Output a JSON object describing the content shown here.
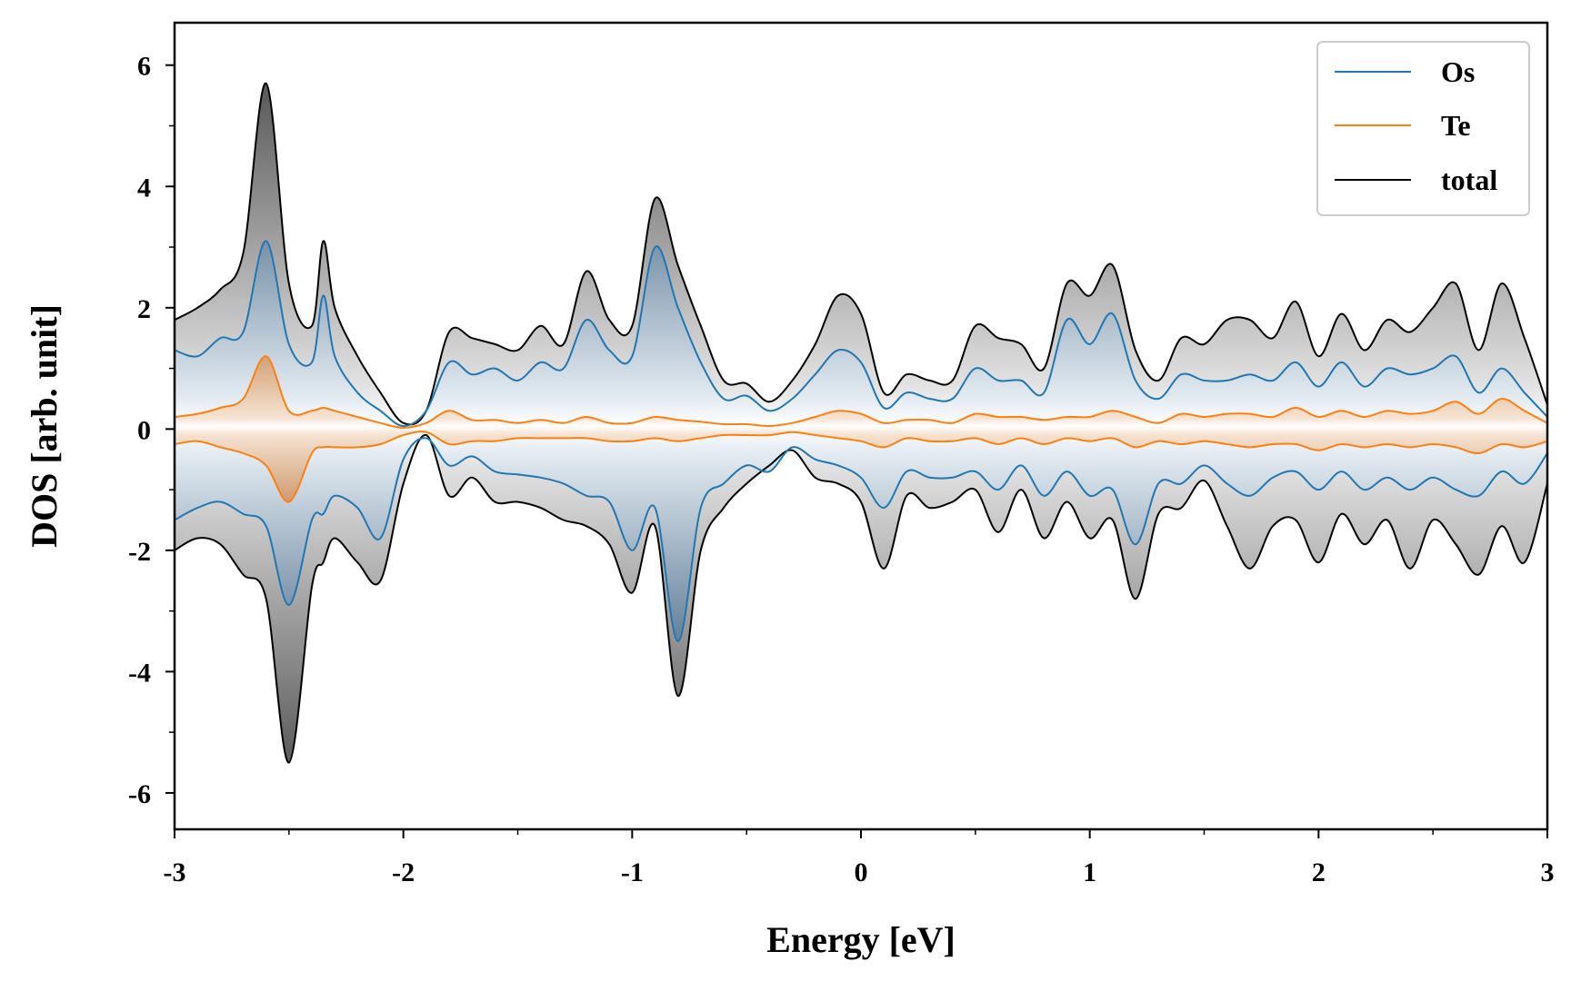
{
  "chart_data": {
    "type": "line",
    "title": "",
    "xlabel": "Energy [eV]",
    "ylabel": "DOS [arb. unit]",
    "xlim": [
      -3,
      3
    ],
    "ylim": [
      -6.6,
      6.7
    ],
    "xticks": [
      -3,
      -2,
      -1,
      0,
      1,
      2,
      3
    ],
    "xtick_labels": [
      "-3",
      "-2",
      "-1",
      "0",
      "1",
      "2",
      "3"
    ],
    "yticks": [
      -6,
      -4,
      -2,
      0,
      2,
      4,
      6
    ],
    "ytick_labels": [
      "-6",
      "-4",
      "-2",
      "0",
      "2",
      "4",
      "6"
    ],
    "grid": false,
    "legend": {
      "position": "top-right",
      "entries": [
        {
          "label": "Os",
          "color": "#1f77b4"
        },
        {
          "label": "Te",
          "color": "#ff7f0e"
        },
        {
          "label": "total",
          "color": "#000000"
        }
      ]
    },
    "x": [
      -3.0,
      -2.9,
      -2.8,
      -2.7,
      -2.6,
      -2.5,
      -2.4,
      -2.35,
      -2.3,
      -2.2,
      -2.1,
      -2.0,
      -1.9,
      -1.8,
      -1.7,
      -1.6,
      -1.5,
      -1.4,
      -1.3,
      -1.2,
      -1.1,
      -1.0,
      -0.9,
      -0.8,
      -0.7,
      -0.6,
      -0.5,
      -0.4,
      -0.3,
      -0.2,
      -0.1,
      0.0,
      0.1,
      0.2,
      0.3,
      0.4,
      0.5,
      0.6,
      0.7,
      0.8,
      0.9,
      1.0,
      1.1,
      1.2,
      1.3,
      1.4,
      1.5,
      1.6,
      1.7,
      1.8,
      1.9,
      2.0,
      2.1,
      2.2,
      2.3,
      2.4,
      2.5,
      2.6,
      2.7,
      2.8,
      2.9,
      3.0
    ],
    "series": [
      {
        "name": "total (spin up)",
        "color": "#000000",
        "values": [
          1.8,
          2.0,
          2.3,
          2.9,
          5.7,
          2.4,
          1.7,
          3.1,
          2.0,
          1.2,
          0.6,
          0.1,
          0.3,
          1.6,
          1.5,
          1.4,
          1.3,
          1.7,
          1.4,
          2.6,
          1.8,
          1.7,
          3.8,
          2.7,
          1.7,
          0.8,
          0.75,
          0.45,
          0.8,
          1.4,
          2.2,
          1.9,
          0.6,
          0.9,
          0.8,
          0.8,
          1.7,
          1.5,
          1.4,
          1.0,
          2.4,
          2.2,
          2.7,
          1.3,
          0.8,
          1.5,
          1.4,
          1.8,
          1.8,
          1.5,
          2.1,
          1.2,
          1.9,
          1.3,
          1.8,
          1.6,
          2.0,
          2.4,
          1.3,
          2.4,
          1.5,
          0.4
        ]
      },
      {
        "name": "Os (spin up)",
        "color": "#1f77b4",
        "values": [
          1.3,
          1.2,
          1.5,
          1.6,
          3.1,
          1.4,
          1.1,
          2.2,
          1.2,
          0.6,
          0.3,
          0.05,
          0.3,
          1.1,
          0.9,
          1.0,
          0.8,
          1.1,
          1.0,
          1.8,
          1.3,
          1.2,
          3.0,
          2.0,
          1.1,
          0.5,
          0.55,
          0.3,
          0.5,
          0.9,
          1.3,
          1.1,
          0.35,
          0.6,
          0.5,
          0.5,
          1.0,
          0.8,
          0.8,
          0.6,
          1.8,
          1.4,
          1.9,
          0.8,
          0.5,
          0.9,
          0.8,
          0.8,
          0.9,
          0.8,
          1.1,
          0.7,
          1.1,
          0.7,
          1.0,
          0.9,
          1.0,
          1.2,
          0.6,
          1.0,
          0.6,
          0.2
        ]
      },
      {
        "name": "Te (spin up)",
        "color": "#ff7f0e",
        "values": [
          0.2,
          0.25,
          0.35,
          0.5,
          1.2,
          0.3,
          0.3,
          0.35,
          0.3,
          0.2,
          0.1,
          0.02,
          0.1,
          0.3,
          0.15,
          0.15,
          0.1,
          0.15,
          0.1,
          0.2,
          0.1,
          0.1,
          0.2,
          0.15,
          0.12,
          0.08,
          0.08,
          0.05,
          0.1,
          0.2,
          0.3,
          0.25,
          0.1,
          0.15,
          0.15,
          0.1,
          0.25,
          0.2,
          0.2,
          0.15,
          0.2,
          0.2,
          0.3,
          0.2,
          0.1,
          0.25,
          0.2,
          0.25,
          0.25,
          0.2,
          0.35,
          0.2,
          0.3,
          0.2,
          0.3,
          0.25,
          0.3,
          0.45,
          0.25,
          0.5,
          0.3,
          0.1
        ]
      },
      {
        "name": "total (spin down)",
        "color": "#000000",
        "values": [
          -2.0,
          -1.8,
          -1.9,
          -2.4,
          -2.8,
          -5.5,
          -2.6,
          -2.2,
          -1.8,
          -2.2,
          -2.5,
          -0.9,
          -0.1,
          -1.1,
          -0.8,
          -1.2,
          -1.2,
          -1.3,
          -1.5,
          -1.6,
          -1.9,
          -2.7,
          -1.6,
          -4.4,
          -2.0,
          -1.3,
          -0.9,
          -0.6,
          -0.35,
          -0.8,
          -0.9,
          -1.2,
          -2.3,
          -1.1,
          -1.3,
          -1.2,
          -1.0,
          -1.7,
          -1.0,
          -1.8,
          -1.2,
          -1.8,
          -1.5,
          -2.8,
          -1.4,
          -1.3,
          -0.85,
          -1.6,
          -2.3,
          -1.6,
          -1.5,
          -2.2,
          -1.4,
          -1.9,
          -1.5,
          -2.3,
          -1.5,
          -1.9,
          -2.4,
          -1.6,
          -2.2,
          -0.9
        ]
      },
      {
        "name": "Os (spin down)",
        "color": "#1f77b4",
        "values": [
          -1.5,
          -1.3,
          -1.2,
          -1.4,
          -1.6,
          -2.9,
          -1.5,
          -1.4,
          -1.1,
          -1.3,
          -1.8,
          -0.5,
          -0.15,
          -0.6,
          -0.45,
          -0.7,
          -0.75,
          -0.8,
          -0.9,
          -1.1,
          -1.2,
          -2.0,
          -1.3,
          -3.5,
          -1.3,
          -0.9,
          -0.6,
          -0.7,
          -0.3,
          -0.5,
          -0.6,
          -0.8,
          -1.3,
          -0.7,
          -0.8,
          -0.8,
          -0.7,
          -1.0,
          -0.6,
          -1.1,
          -0.7,
          -1.1,
          -1.0,
          -1.9,
          -0.9,
          -0.9,
          -0.6,
          -0.9,
          -1.1,
          -0.8,
          -0.7,
          -1.0,
          -0.7,
          -1.0,
          -0.8,
          -1.0,
          -0.8,
          -1.0,
          -1.1,
          -0.7,
          -0.9,
          -0.4
        ]
      },
      {
        "name": "Te (spin down)",
        "color": "#ff7f0e",
        "values": [
          -0.25,
          -0.2,
          -0.3,
          -0.4,
          -0.6,
          -1.2,
          -0.4,
          -0.3,
          -0.3,
          -0.3,
          -0.25,
          -0.1,
          -0.05,
          -0.25,
          -0.2,
          -0.2,
          -0.15,
          -0.15,
          -0.15,
          -0.15,
          -0.2,
          -0.2,
          -0.15,
          -0.2,
          -0.15,
          -0.1,
          -0.1,
          -0.1,
          -0.05,
          -0.1,
          -0.15,
          -0.2,
          -0.3,
          -0.15,
          -0.2,
          -0.2,
          -0.15,
          -0.25,
          -0.15,
          -0.25,
          -0.15,
          -0.2,
          -0.15,
          -0.3,
          -0.2,
          -0.25,
          -0.2,
          -0.25,
          -0.3,
          -0.25,
          -0.25,
          -0.35,
          -0.25,
          -0.3,
          -0.25,
          -0.3,
          -0.25,
          -0.3,
          -0.4,
          -0.25,
          -0.3,
          -0.2
        ]
      }
    ]
  }
}
